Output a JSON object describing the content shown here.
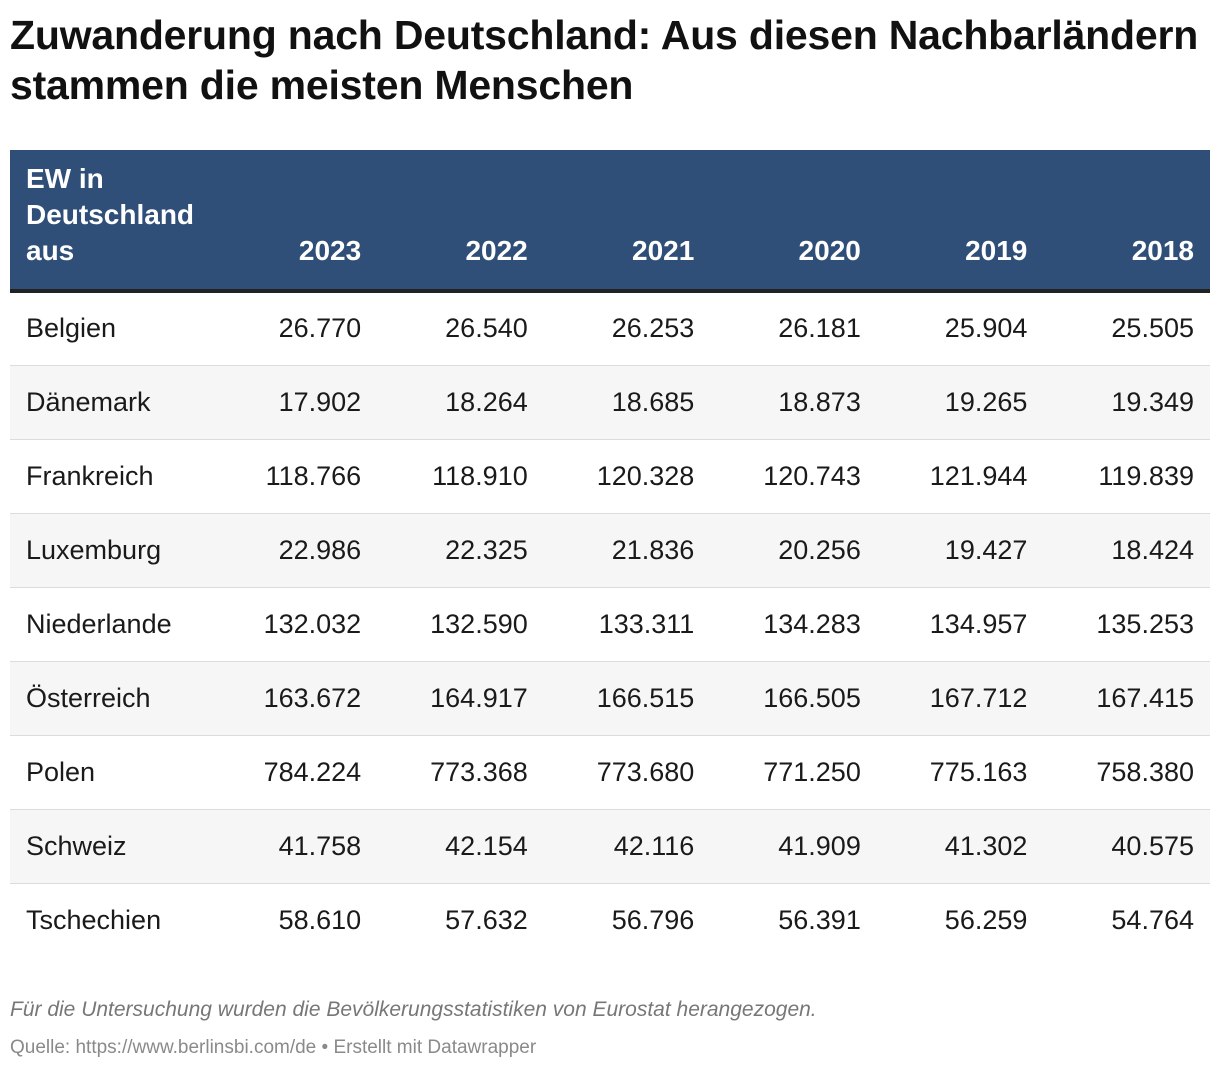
{
  "title": "Zuwanderung nach Deutschland: Aus diesen Nachbarländern stammen die meisten Menschen",
  "chart_data": {
    "type": "table",
    "title": "Zuwanderung nach Deutschland: Aus diesen Nachbarländern stammen die meisten Menschen",
    "columns": [
      "EW in Deutschland aus",
      "2023",
      "2022",
      "2021",
      "2020",
      "2019",
      "2018"
    ],
    "rows": [
      {
        "label": "Belgien",
        "values": [
          "26.770",
          "26.540",
          "26.253",
          "26.181",
          "25.904",
          "25.505"
        ]
      },
      {
        "label": "Dänemark",
        "values": [
          "17.902",
          "18.264",
          "18.685",
          "18.873",
          "19.265",
          "19.349"
        ]
      },
      {
        "label": "Frankreich",
        "values": [
          "118.766",
          "118.910",
          "120.328",
          "120.743",
          "121.944",
          "119.839"
        ]
      },
      {
        "label": "Luxemburg",
        "values": [
          "22.986",
          "22.325",
          "21.836",
          "20.256",
          "19.427",
          "18.424"
        ]
      },
      {
        "label": "Niederlande",
        "values": [
          "132.032",
          "132.590",
          "133.311",
          "134.283",
          "134.957",
          "135.253"
        ]
      },
      {
        "label": "Österreich",
        "values": [
          "163.672",
          "164.917",
          "166.515",
          "166.505",
          "167.712",
          "167.415"
        ]
      },
      {
        "label": "Polen",
        "values": [
          "784.224",
          "773.368",
          "773.680",
          "771.250",
          "775.163",
          "758.380"
        ]
      },
      {
        "label": "Schweiz",
        "values": [
          "41.758",
          "42.154",
          "42.116",
          "41.909",
          "41.302",
          "40.575"
        ]
      },
      {
        "label": "Tschechien",
        "values": [
          "58.610",
          "57.632",
          "56.796",
          "56.391",
          "56.259",
          "54.764"
        ]
      }
    ]
  },
  "note": "Für die Untersuchung wurden die Bevölkerungsstatistiken von Eurostat herangezogen.",
  "source": "Quelle: https://www.berlinsbi.com/de • Erstellt mit Datawrapper",
  "colors": {
    "header_background": "#2f4f79",
    "header_text": "#ffffff",
    "row_alt_background": "#f6f6f6"
  }
}
